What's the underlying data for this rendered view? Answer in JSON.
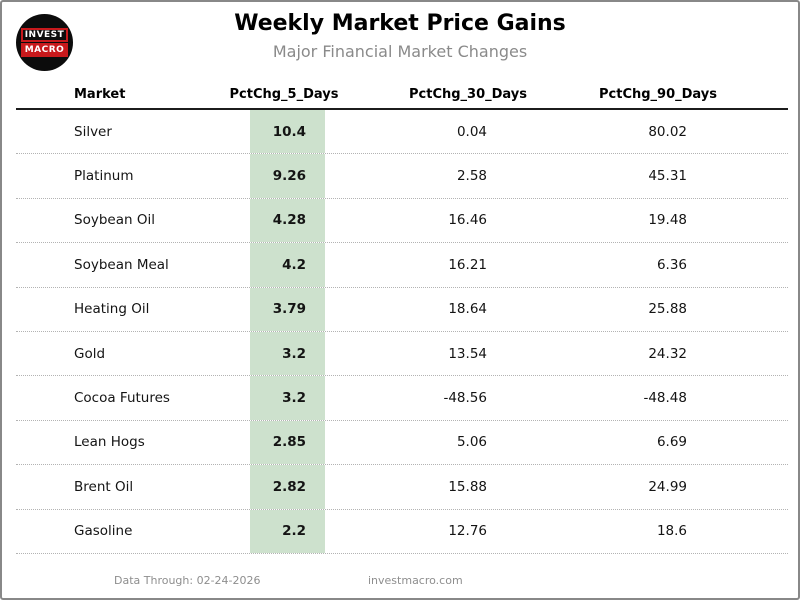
{
  "header": {
    "title": "Weekly Market Price Gains",
    "subtitle": "Major Financial Market Changes",
    "logo": {
      "line1": "INVEST",
      "line2": "MACRO"
    }
  },
  "footer": {
    "data_through": "Data Through: 02-24-2026",
    "website": "investmacro.com"
  },
  "colors": {
    "highlight_green": "#cde1cd",
    "logo_red": "#c8191c",
    "subtitle_gray": "#8a8a8a",
    "footer_gray": "#8e8e8e"
  },
  "chart_data": {
    "type": "table",
    "title": "Weekly Market Price Gains",
    "subtitle": "Major Financial Market Changes",
    "columns": [
      "Market",
      "PctChg_5_Days",
      "PctChg_30_Days",
      "PctChg_90_Days"
    ],
    "highlighted_column": "PctChg_5_Days",
    "sort": "PctChg_5_Days descending",
    "rows": [
      {
        "market": "Silver",
        "pct_5": 10.4,
        "pct_30": 0.04,
        "pct_90": 80.02
      },
      {
        "market": "Platinum",
        "pct_5": 9.26,
        "pct_30": 2.58,
        "pct_90": 45.31
      },
      {
        "market": "Soybean Oil",
        "pct_5": 4.28,
        "pct_30": 16.46,
        "pct_90": 19.48
      },
      {
        "market": "Soybean Meal",
        "pct_5": 4.2,
        "pct_30": 16.21,
        "pct_90": 6.36
      },
      {
        "market": "Heating Oil",
        "pct_5": 3.79,
        "pct_30": 18.64,
        "pct_90": 25.88
      },
      {
        "market": "Gold",
        "pct_5": 3.2,
        "pct_30": 13.54,
        "pct_90": 24.32
      },
      {
        "market": "Cocoa Futures",
        "pct_5": 3.2,
        "pct_30": -48.56,
        "pct_90": -48.48
      },
      {
        "market": "Lean Hogs",
        "pct_5": 2.85,
        "pct_30": 5.06,
        "pct_90": 6.69
      },
      {
        "market": "Brent Oil",
        "pct_5": 2.82,
        "pct_30": 15.88,
        "pct_90": 24.99
      },
      {
        "market": "Gasoline",
        "pct_5": 2.2,
        "pct_30": 12.76,
        "pct_90": 18.6
      }
    ]
  }
}
